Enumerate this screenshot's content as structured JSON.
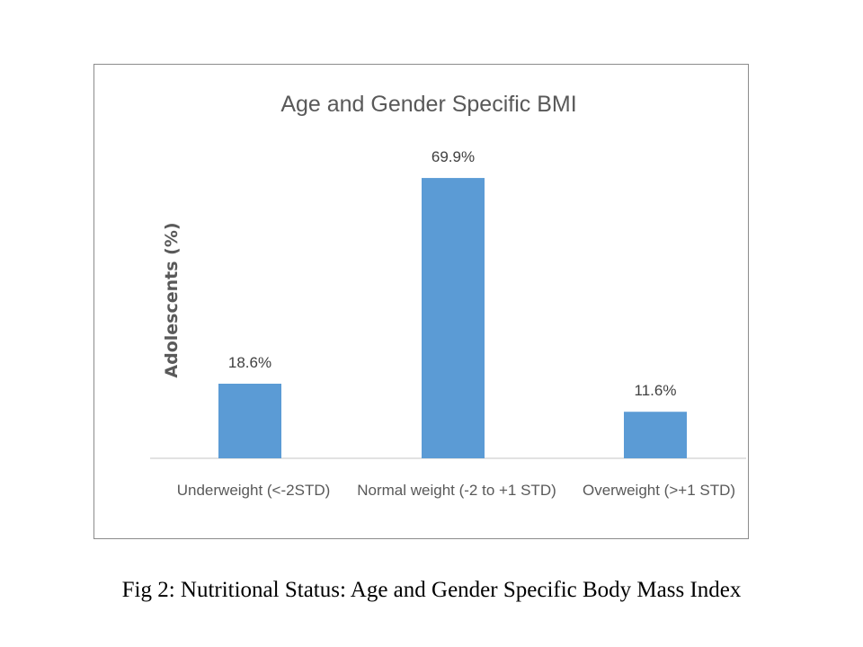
{
  "chart_data": {
    "type": "bar",
    "title": "Age and Gender Specific BMI",
    "xlabel": "",
    "ylabel": "Adolescents (%)",
    "categories": [
      "Underweight (<-2STD)",
      "Normal weight (-2 to +1 STD)",
      "Overweight (>+1 STD)"
    ],
    "values": [
      18.6,
      69.9,
      11.6
    ],
    "data_labels": [
      "18.6%",
      "69.9%",
      "11.6%"
    ],
    "ylim": [
      0,
      80
    ],
    "bar_color": "#5b9bd5",
    "grid": false,
    "legend": "none"
  },
  "caption": "Fig 2: Nutritional Status: Age and Gender Specific Body Mass Index"
}
